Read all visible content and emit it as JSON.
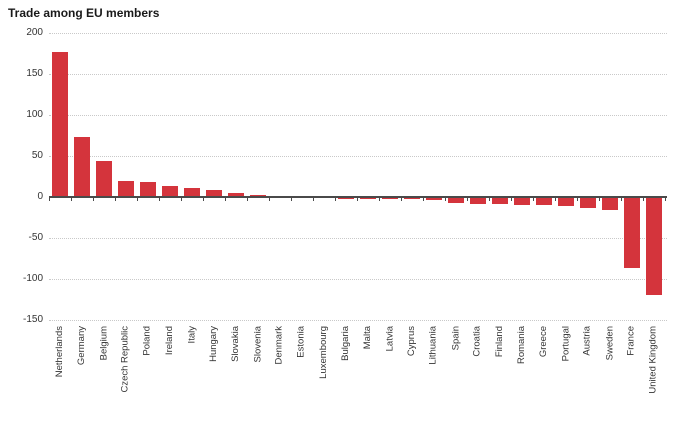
{
  "title": "Trade among EU members",
  "colors": {
    "bar": "#d4343c",
    "axis": "#4a4a4a",
    "grid": "#c9c9c9",
    "tick_text": "#333333",
    "title_text": "#1a1a1a",
    "background": "#ffffff"
  },
  "chart_data": {
    "type": "bar",
    "title": "Trade among EU members",
    "categories": [
      "Netherlands",
      "Germany",
      "Belgium",
      "Czech Republic",
      "Poland",
      "Ireland",
      "Italy",
      "Hungary",
      "Slovakia",
      "Slovenia",
      "Denmark",
      "Estonia",
      "Luxembourg",
      "Bulgaria",
      "Malta",
      "Latvia",
      "Cyprus",
      "Lithuania",
      "Spain",
      "Croatia",
      "Finland",
      "Romania",
      "Greece",
      "Portugal",
      "Austria",
      "Sweden",
      "France",
      "United Kingdom"
    ],
    "values": [
      177,
      73,
      44,
      20,
      18,
      14,
      11,
      8,
      5,
      3,
      -1,
      -1,
      -1,
      -2,
      -2,
      -2,
      -3,
      -4,
      -7,
      -8,
      -9,
      -10,
      -10,
      -11,
      -14,
      -16,
      -86,
      -120
    ],
    "xlabel": "",
    "ylabel": "",
    "ylim": [
      -150,
      200
    ],
    "yticks": [
      200,
      150,
      100,
      50,
      0,
      -50,
      -100,
      -150
    ],
    "grid": "horizontal-dotted",
    "legend": "none",
    "bar_color": "#d4343c"
  }
}
